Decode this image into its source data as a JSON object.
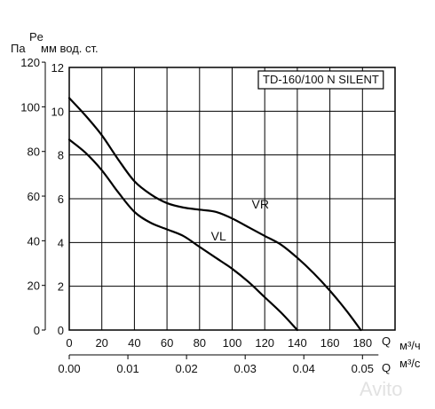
{
  "chart_data": {
    "type": "line",
    "title": "TD-160/100 N SILENT",
    "x_primary": {
      "label": "Q",
      "unit": "м³/ч",
      "ticks": [
        0,
        20,
        40,
        60,
        80,
        100,
        120,
        140,
        160,
        180
      ],
      "range": [
        0,
        200
      ]
    },
    "x_secondary": {
      "label": "Q",
      "unit": "м³/с",
      "ticks": [
        "0.00",
        "0.01",
        "0.02",
        "0.03",
        "0.04",
        "0.05"
      ],
      "tick_values": [
        0,
        0.01,
        0.02,
        0.03,
        0.04,
        0.05
      ]
    },
    "y_primary": {
      "label": "Pe",
      "unit": "мм вод. ст.",
      "ticks": [
        0,
        2,
        4,
        6,
        8,
        10,
        12
      ],
      "range": [
        0,
        12
      ]
    },
    "y_secondary": {
      "unit": "Па",
      "ticks": [
        0,
        20,
        40,
        60,
        80,
        100,
        120
      ],
      "tick_values": [
        0,
        2.04,
        4.08,
        6.12,
        8.16,
        10.2,
        12.24
      ]
    },
    "grid": true,
    "series": [
      {
        "name": "VR",
        "x": [
          0,
          10,
          20,
          30,
          40,
          50,
          60,
          70,
          80,
          90,
          100,
          110,
          120,
          130,
          140,
          150,
          160,
          170,
          179
        ],
        "y": [
          10.6,
          9.8,
          8.9,
          7.8,
          6.8,
          6.2,
          5.8,
          5.6,
          5.5,
          5.4,
          5.1,
          4.7,
          4.3,
          3.9,
          3.3,
          2.6,
          1.8,
          0.9,
          0
        ]
      },
      {
        "name": "VL",
        "x": [
          0,
          10,
          20,
          30,
          40,
          50,
          60,
          70,
          80,
          90,
          100,
          110,
          120,
          130,
          140
        ],
        "y": [
          8.7,
          8.1,
          7.3,
          6.3,
          5.4,
          4.9,
          4.6,
          4.3,
          3.8,
          3.3,
          2.8,
          2.2,
          1.5,
          0.8,
          0
        ]
      }
    ]
  },
  "watermark": "Avito"
}
